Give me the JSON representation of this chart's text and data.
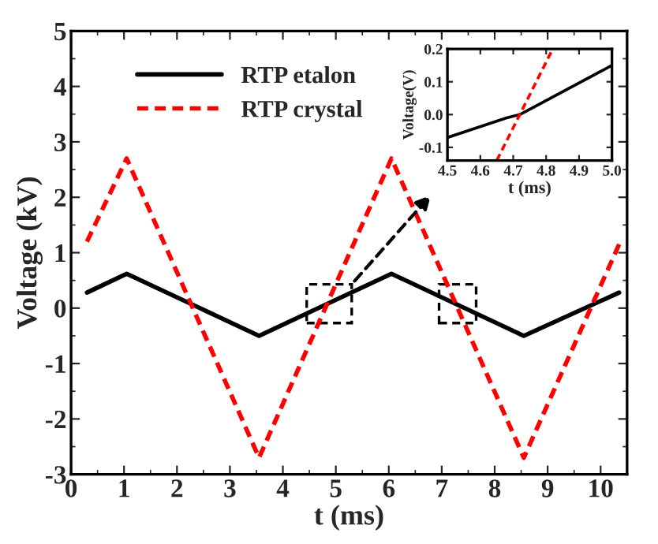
{
  "chart_data": [
    {
      "type": "line",
      "xlabel": "t (ms)",
      "ylabel": "Voltage (kV)",
      "xlim": [
        0,
        10.5
      ],
      "ylim": [
        -3,
        5
      ],
      "xticks": [
        0,
        1,
        2,
        3,
        4,
        5,
        6,
        7,
        8,
        9,
        10
      ],
      "yticks": [
        -3,
        -2,
        -1,
        0,
        1,
        2,
        3,
        4,
        5
      ],
      "legend": "top left",
      "grid": false,
      "marker": "none",
      "series": [
        {
          "name": "RTP etalon",
          "color": "#000000",
          "line_style": "solid",
          "x": [
            0.3,
            1.05,
            3.55,
            6.05,
            8.55,
            10.35
          ],
          "values": [
            0.28,
            0.62,
            -0.5,
            0.62,
            -0.5,
            0.28
          ]
        },
        {
          "name": "RTP crystal",
          "color": "#ff0000",
          "line_style": "dashed",
          "x": [
            0.3,
            1.05,
            3.55,
            6.05,
            8.55,
            10.35
          ],
          "values": [
            1.2,
            2.7,
            -2.7,
            2.7,
            -2.7,
            1.15
          ]
        }
      ]
    },
    {
      "type": "line",
      "xlabel": "t (ms)",
      "ylabel": "Voltage(V)",
      "xlim": [
        4.5,
        5.0
      ],
      "ylim": [
        -0.14,
        0.2
      ],
      "xticks": [
        {
          "value": 4.5,
          "label": "4.5"
        },
        4.6,
        4.7,
        4.8,
        4.9,
        {
          "value": 5.0,
          "label": "5.0"
        }
      ],
      "yticks": [
        -0.1,
        {
          "value": 0.0,
          "label": "0.0"
        },
        0.1,
        0.2
      ],
      "grid": false,
      "marker": "none",
      "series": [
        {
          "color": "#000000",
          "line_style": "solid",
          "x": [
            4.5,
            4.68,
            4.72,
            5.0
          ],
          "values": [
            -0.07,
            -0.01,
            0.0,
            0.15
          ]
        },
        {
          "color": "#ff0000",
          "line_style": "dashed",
          "x": [
            4.65,
            4.82
          ],
          "values": [
            -0.14,
            0.2
          ]
        }
      ]
    }
  ]
}
